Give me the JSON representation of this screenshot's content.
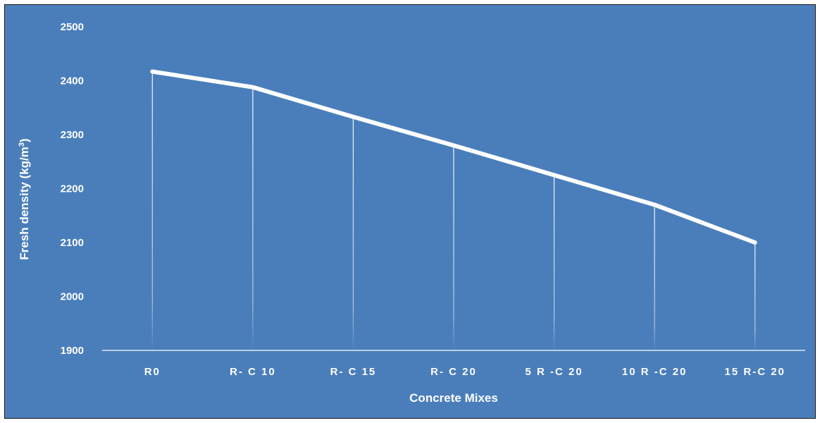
{
  "chart_data": {
    "type": "line",
    "title": "",
    "xlabel": "Concrete Mixes",
    "ylabel_main": "Fresh density (kg/m",
    "ylabel_sup": "3",
    "ylabel_close": ")",
    "categories": [
      "R0",
      "R- C 10",
      "R- C 15",
      "R- C 20",
      "5 R -C 20",
      "10 R -C 20",
      "15 R-C 20"
    ],
    "series": [
      {
        "values": [
          2417,
          2388,
          2333,
          2280,
          2225,
          2170,
          2100
        ]
      }
    ],
    "ylim": [
      1900,
      2500
    ],
    "yticks": [
      1900,
      2000,
      2100,
      2200,
      2300,
      2400,
      2500
    ],
    "drop_lines": true,
    "grid": false,
    "legend": "none",
    "colors": {
      "background": "#4a7ebb",
      "line": "#ffffff",
      "text": "#ffffff"
    }
  }
}
